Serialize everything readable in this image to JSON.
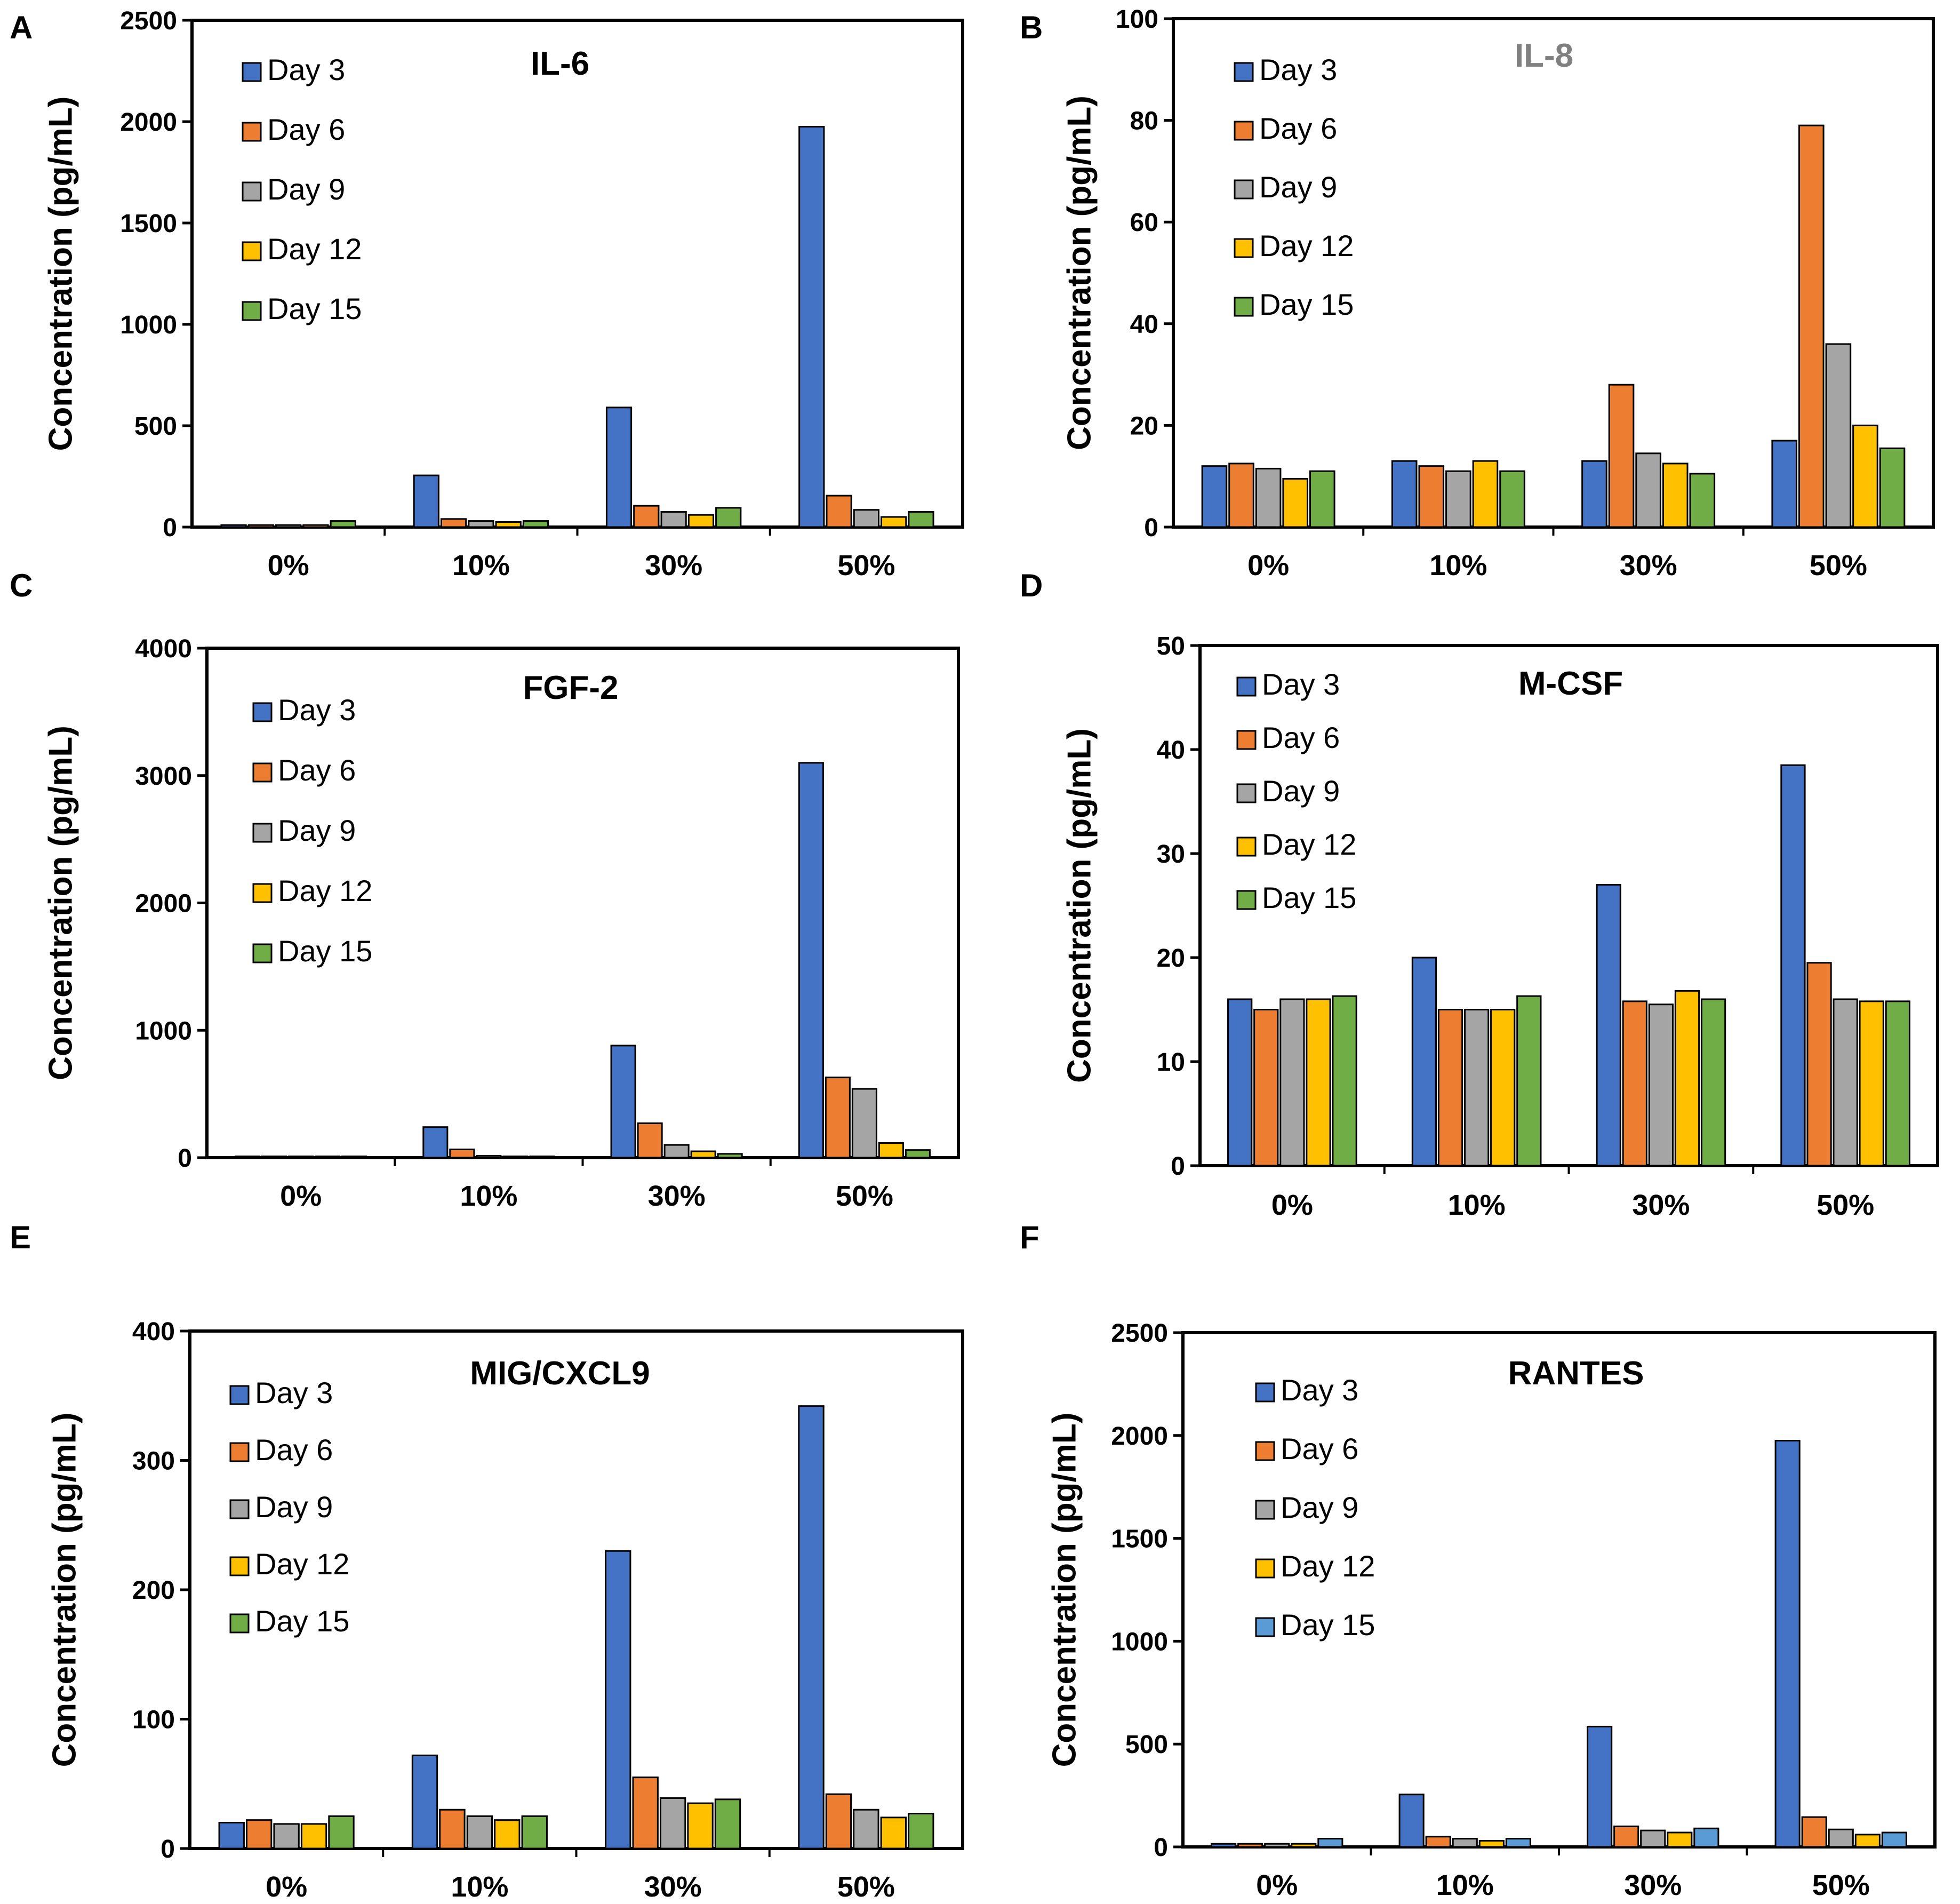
{
  "figure": {
    "panel_letters": [
      "A",
      "B",
      "C",
      "D",
      "E",
      "F"
    ]
  },
  "colors": {
    "Day 3": "#4472C4",
    "Day 6": "#ED7D31",
    "Day 9": "#A5A5A5",
    "Day 12": "#FFC000",
    "Day 15": "#70AD47",
    "Day 15 (RANTES)": "#5B9BD5"
  },
  "chart_data": [
    {
      "panel": "A",
      "type": "bar",
      "title": "IL-6",
      "title_color": "#000000",
      "ylabel": "Concentration (pg/mL)",
      "xlabel": "",
      "categories": [
        "0%",
        "10%",
        "30%",
        "50%"
      ],
      "ylim": [
        0,
        2500
      ],
      "yticks": [
        "0",
        "500",
        "1000",
        "1500",
        "2000",
        "2500"
      ],
      "legend_position": "top-left",
      "series": [
        {
          "name": "Day 3",
          "color": "#4472C4",
          "values": [
            10,
            255,
            590,
            1975
          ]
        },
        {
          "name": "Day 6",
          "color": "#ED7D31",
          "values": [
            10,
            40,
            105,
            155
          ]
        },
        {
          "name": "Day 9",
          "color": "#A5A5A5",
          "values": [
            10,
            30,
            75,
            85
          ]
        },
        {
          "name": "Day 12",
          "color": "#FFC000",
          "values": [
            10,
            25,
            60,
            50
          ]
        },
        {
          "name": "Day 15",
          "color": "#70AD47",
          "values": [
            30,
            30,
            95,
            75
          ]
        }
      ]
    },
    {
      "panel": "B",
      "type": "bar",
      "title": "IL-8",
      "title_color": "#808080",
      "ylabel": "Concentration (pg/mL)",
      "xlabel": "",
      "categories": [
        "0%",
        "10%",
        "30%",
        "50%"
      ],
      "ylim": [
        0,
        100
      ],
      "yticks": [
        "0",
        "20",
        "40",
        "60",
        "80",
        "100"
      ],
      "legend_position": "top-left",
      "series": [
        {
          "name": "Day 3",
          "color": "#4472C4",
          "values": [
            12,
            13,
            13,
            17
          ]
        },
        {
          "name": "Day 6",
          "color": "#ED7D31",
          "values": [
            12.5,
            12,
            28,
            79
          ]
        },
        {
          "name": "Day 9",
          "color": "#A5A5A5",
          "values": [
            11.5,
            11,
            14.5,
            36
          ]
        },
        {
          "name": "Day 12",
          "color": "#FFC000",
          "values": [
            9.5,
            13,
            12.5,
            20
          ]
        },
        {
          "name": "Day 15",
          "color": "#70AD47",
          "values": [
            11,
            11,
            10.5,
            15.5
          ]
        }
      ]
    },
    {
      "panel": "C",
      "type": "bar",
      "title": "FGF-2",
      "title_color": "#000000",
      "ylabel": "Concentration (pg/mL)",
      "xlabel": "",
      "categories": [
        "0%",
        "10%",
        "30%",
        "50%"
      ],
      "ylim": [
        0,
        4000
      ],
      "yticks": [
        "0",
        "1000",
        "2000",
        "3000",
        "4000"
      ],
      "legend_position": "top-left",
      "series": [
        {
          "name": "Day 3",
          "color": "#4472C4",
          "values": [
            10,
            240,
            880,
            3100
          ]
        },
        {
          "name": "Day 6",
          "color": "#ED7D31",
          "values": [
            10,
            65,
            270,
            630
          ]
        },
        {
          "name": "Day 9",
          "color": "#A5A5A5",
          "values": [
            10,
            15,
            100,
            540
          ]
        },
        {
          "name": "Day 12",
          "color": "#FFC000",
          "values": [
            10,
            10,
            50,
            115
          ]
        },
        {
          "name": "Day 15",
          "color": "#70AD47",
          "values": [
            10,
            10,
            30,
            60
          ]
        }
      ]
    },
    {
      "panel": "D",
      "type": "bar",
      "title": "M-CSF",
      "title_color": "#000000",
      "ylabel": "Concentration (pg/mL)",
      "xlabel": "",
      "categories": [
        "0%",
        "10%",
        "30%",
        "50%"
      ],
      "ylim": [
        0,
        50
      ],
      "yticks": [
        "0",
        "10",
        "20",
        "30",
        "40",
        "50"
      ],
      "legend_position": "top-left",
      "series": [
        {
          "name": "Day 3",
          "color": "#4472C4",
          "values": [
            16,
            20,
            27,
            38.5
          ]
        },
        {
          "name": "Day 6",
          "color": "#ED7D31",
          "values": [
            15,
            15,
            15.8,
            19.5
          ]
        },
        {
          "name": "Day 9",
          "color": "#A5A5A5",
          "values": [
            16,
            15,
            15.5,
            16
          ]
        },
        {
          "name": "Day 12",
          "color": "#FFC000",
          "values": [
            16,
            15,
            16.8,
            15.8
          ]
        },
        {
          "name": "Day 15",
          "color": "#70AD47",
          "values": [
            16.3,
            16.3,
            16,
            15.8
          ]
        }
      ]
    },
    {
      "panel": "E",
      "type": "bar",
      "title": "MIG/CXCL9",
      "title_color": "#000000",
      "ylabel": "Concentration (pg/mL)",
      "xlabel": "",
      "categories": [
        "0%",
        "10%",
        "30%",
        "50%"
      ],
      "ylim": [
        0,
        400
      ],
      "yticks": [
        "0",
        "100",
        "200",
        "300",
        "400"
      ],
      "legend_position": "top-left",
      "series": [
        {
          "name": "Day 3",
          "color": "#4472C4",
          "values": [
            20,
            72,
            230,
            342
          ]
        },
        {
          "name": "Day 6",
          "color": "#ED7D31",
          "values": [
            22,
            30,
            55,
            42
          ]
        },
        {
          "name": "Day 9",
          "color": "#A5A5A5",
          "values": [
            19,
            25,
            39,
            30
          ]
        },
        {
          "name": "Day 12",
          "color": "#FFC000",
          "values": [
            19,
            22,
            35,
            24
          ]
        },
        {
          "name": "Day 15",
          "color": "#70AD47",
          "values": [
            25,
            25,
            38,
            27
          ]
        }
      ]
    },
    {
      "panel": "F",
      "type": "bar",
      "title": "RANTES",
      "title_color": "#000000",
      "ylabel": "Concentration (pg/mL)",
      "xlabel": "",
      "categories": [
        "0%",
        "10%",
        "30%",
        "50%"
      ],
      "ylim": [
        0,
        2500
      ],
      "yticks": [
        "0",
        "500",
        "1000",
        "1500",
        "2000",
        "2500"
      ],
      "legend_position": "top-left",
      "series": [
        {
          "name": "Day 3",
          "color": "#4472C4",
          "values": [
            15,
            255,
            585,
            1975
          ]
        },
        {
          "name": "Day 6",
          "color": "#ED7D31",
          "values": [
            15,
            50,
            100,
            145
          ]
        },
        {
          "name": "Day 9",
          "color": "#A5A5A5",
          "values": [
            15,
            40,
            80,
            85
          ]
        },
        {
          "name": "Day 12",
          "color": "#FFC000",
          "values": [
            15,
            30,
            70,
            60
          ]
        },
        {
          "name": "Day 15",
          "color": "#5B9BD5",
          "values": [
            40,
            40,
            90,
            70
          ]
        }
      ]
    }
  ]
}
